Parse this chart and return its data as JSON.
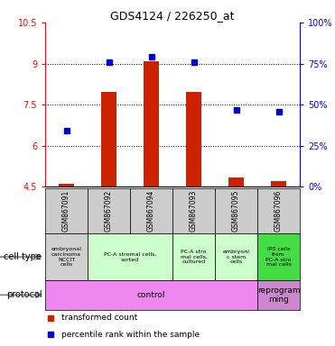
{
  "title": "GDS4124 / 226250_at",
  "samples": [
    "GSM867091",
    "GSM867092",
    "GSM867094",
    "GSM867093",
    "GSM867095",
    "GSM867096"
  ],
  "bar_values": [
    4.6,
    7.95,
    9.1,
    7.95,
    4.85,
    4.7
  ],
  "dot_values": [
    6.55,
    9.05,
    9.25,
    9.05,
    7.3,
    7.25
  ],
  "ylim_left": [
    4.5,
    10.5
  ],
  "ylim_right": [
    0,
    100
  ],
  "yticks_left": [
    4.5,
    6.0,
    7.5,
    9.0,
    10.5
  ],
  "ytick_labels_left": [
    "4.5",
    "6",
    "7.5",
    "9",
    "10.5"
  ],
  "yticks_right": [
    0,
    25,
    50,
    75,
    100
  ],
  "ytick_labels_right": [
    "0%",
    "25%",
    "50%",
    "75%",
    "100%"
  ],
  "bar_color": "#cc2200",
  "dot_color": "#0000cc",
  "gsm_bg_color": "#cccccc",
  "cell_groups": [
    [
      0,
      1,
      "#d0d0d0",
      "embryonal\ncarcinoma\nNCCIT\ncells"
    ],
    [
      1,
      3,
      "#ccffcc",
      "PC-A stromal cells,\nsorted"
    ],
    [
      3,
      4,
      "#ccffcc",
      "PC-A stro\nmal cells,\ncultured"
    ],
    [
      4,
      5,
      "#ccffcc",
      "embryoni\nc stem\ncells"
    ],
    [
      5,
      6,
      "#44dd44",
      "IPS cells\nfrom\nPC-A stro\nmal cells"
    ]
  ],
  "prot_groups": [
    [
      0,
      5,
      "#ee88ee",
      "control"
    ],
    [
      5,
      6,
      "#cc88cc",
      "reprogram\nming"
    ]
  ]
}
